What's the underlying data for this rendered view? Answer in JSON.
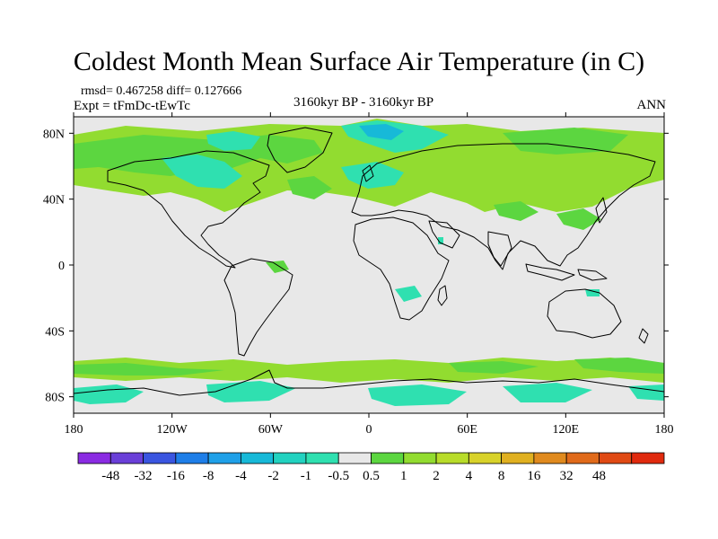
{
  "title": "Coldest Month Mean Surface Air Temperature (in C)",
  "stats": "rmsd= 0.467258 diff= 0.127666",
  "experiment": "Expt = tFmDc-tEwTc",
  "period": "3160kyr BP - 3160kyr BP",
  "season": "ANN",
  "axes": {
    "lat_ticks": [
      {
        "value": 80,
        "label": "80N"
      },
      {
        "value": 40,
        "label": "40N"
      },
      {
        "value": 0,
        "label": "0"
      },
      {
        "value": -40,
        "label": "40S"
      },
      {
        "value": -80,
        "label": "80S"
      }
    ],
    "lon_ticks": [
      {
        "value": -180,
        "label": "180"
      },
      {
        "value": -120,
        "label": "120W"
      },
      {
        "value": -60,
        "label": "60W"
      },
      {
        "value": 0,
        "label": "0"
      },
      {
        "value": 60,
        "label": "60E"
      },
      {
        "value": 120,
        "label": "120E"
      },
      {
        "value": 180,
        "label": "180"
      }
    ]
  },
  "colorbar": {
    "colors": [
      "#8a2be2",
      "#6a3fd8",
      "#3a55e0",
      "#1e7ee8",
      "#1fa0e8",
      "#17b9d8",
      "#22d2c0",
      "#2fe0b0",
      "#e8e8e8",
      "#5cd640",
      "#92dc30",
      "#b8dc2a",
      "#d8d22a",
      "#e0b020",
      "#e08a1e",
      "#e06a1a",
      "#e04a14",
      "#e02a0e"
    ],
    "labels": [
      "-48",
      "-32",
      "-16",
      "-8",
      "-4",
      "-2",
      "-1",
      "-0.5",
      "0.5",
      "1",
      "2",
      "4",
      "8",
      "16",
      "32",
      "48"
    ]
  },
  "palette": {
    "neutral": "#e8e8e8",
    "green": "#5cd640",
    "yellowgreen": "#92dc30",
    "teal": "#2fe0b0",
    "cyan": "#17b9d8"
  }
}
